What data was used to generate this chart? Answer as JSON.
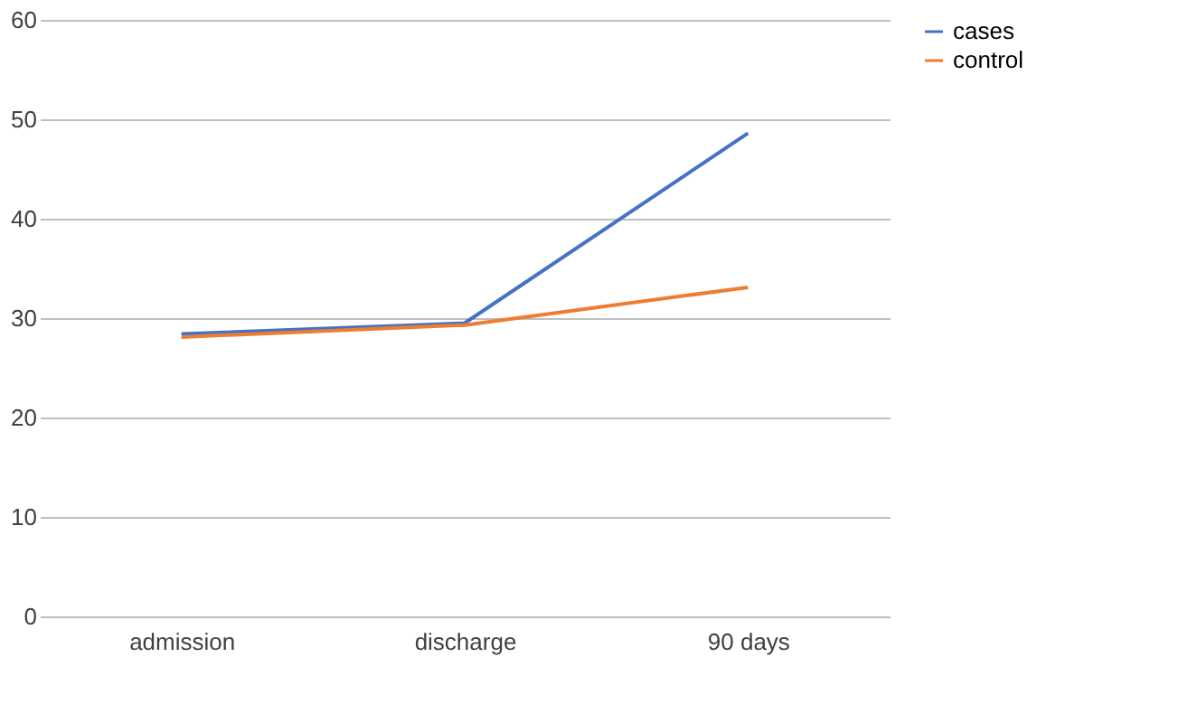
{
  "chart_data": {
    "type": "line",
    "categories": [
      "admission",
      "discharge",
      "90 days"
    ],
    "series": [
      {
        "name": "cases",
        "color": "#4472c4",
        "values": [
          28.4,
          29.5,
          48.6
        ]
      },
      {
        "name": "control",
        "color": "#ed7d31",
        "values": [
          28.1,
          29.3,
          33.1
        ]
      }
    ],
    "ylim": [
      0,
      60
    ],
    "yticks": [
      0,
      10,
      20,
      30,
      40,
      50,
      60
    ],
    "grid": "y",
    "legend": "right",
    "marker": "none",
    "line_style": "solid"
  }
}
